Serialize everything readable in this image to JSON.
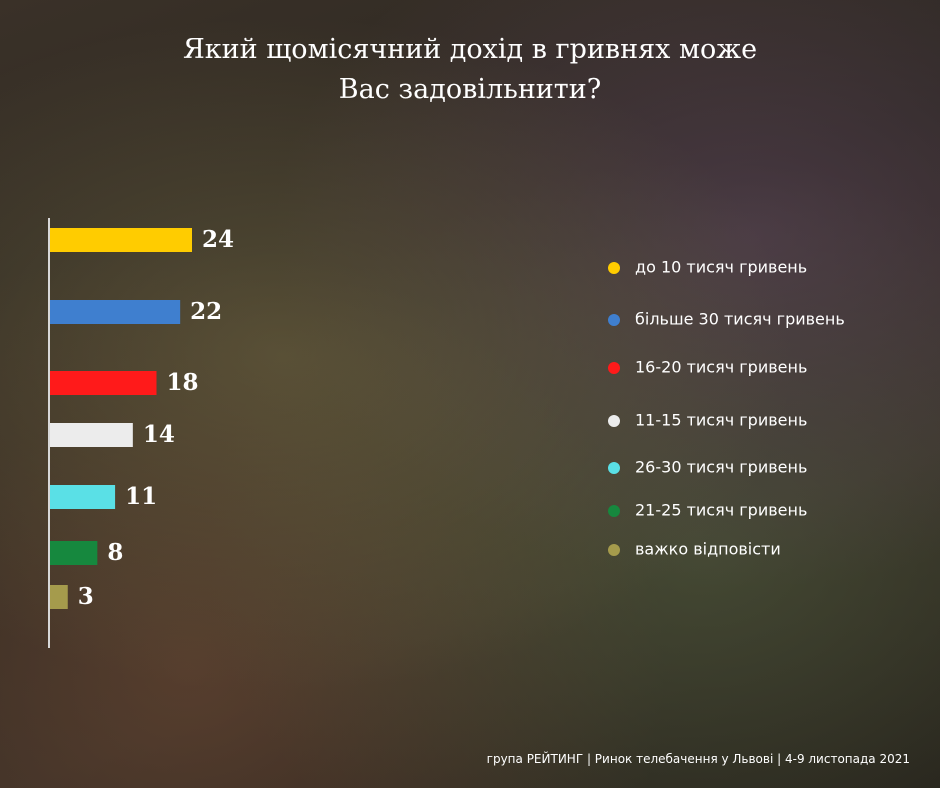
{
  "chart_data": {
    "type": "bar",
    "title": "Який щомісячний дохід в гривнях може Вас задовільнити?",
    "categories": [
      "до 10 тисяч гривень",
      "більше 30 тисяч гривень",
      "16-20 тисяч гривень",
      "11-15 тисяч гривень",
      "26-30 тисяч гривень",
      "21-25 тисяч гривень",
      "важко відповісти"
    ],
    "values": [
      24,
      22,
      18,
      14,
      11,
      8,
      3
    ],
    "colors": [
      "#ffcc00",
      "#3f7fcf",
      "#ff1a1a",
      "#ececec",
      "#5ae0e6",
      "#16883e",
      "#a59b4c"
    ],
    "source": "група РЕЙТИНГ | Ринок телебачення у Львові | 4-9 листопада 2021"
  }
}
